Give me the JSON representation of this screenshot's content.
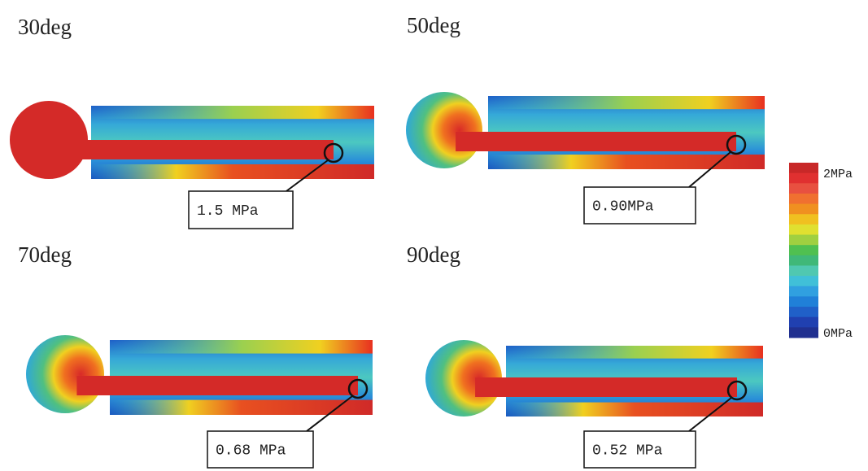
{
  "panels": [
    {
      "label": "30deg",
      "annotation": "1.5 MPa"
    },
    {
      "label": "50deg",
      "annotation": "0.90MPa"
    },
    {
      "label": "70deg",
      "annotation": "0.68 MPa"
    },
    {
      "label": "90deg",
      "annotation": "0.52 MPa"
    }
  ],
  "colorbar": {
    "max_label": "2MPa",
    "min_label": "0MPa"
  }
}
